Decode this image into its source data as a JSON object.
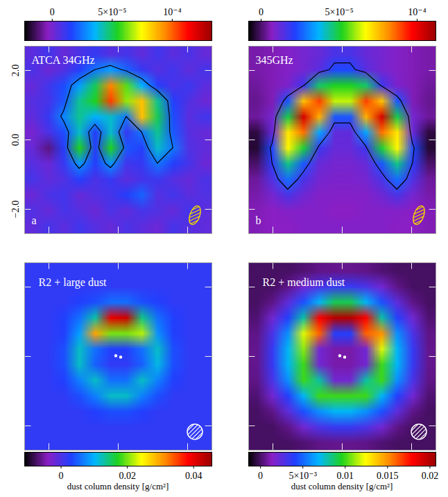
{
  "chart_data": [
    {
      "type": "heatmap",
      "title": "ATCA 34GHz",
      "panel_label": "a",
      "x": [
        -2.475,
        -2.025,
        -1.575,
        -1.125,
        -0.675,
        -0.225,
        0.225,
        0.675,
        1.125,
        1.575,
        2.025,
        2.475
      ],
      "y": [
        2.475,
        2.025,
        1.575,
        1.125,
        0.675,
        0.225,
        -0.225,
        -0.675,
        -1.125,
        -1.575,
        -2.025,
        -2.475
      ],
      "values": [
        [
          5e-06,
          1e-05,
          3e-06,
          8e-06,
          1.2e-05,
          6e-06,
          9e-06,
          4e-06,
          1e-05,
          5e-06,
          8e-06,
          3e-06
        ],
        [
          8e-06,
          2e-06,
          7e-06,
          1.5e-05,
          2.5e-05,
          3.2e-05,
          2.2e-05,
          1.2e-05,
          6e-06,
          1e-05,
          4e-06,
          9e-06
        ],
        [
          3e-06,
          1e-05,
          1.8e-05,
          3.2e-05,
          5e-05,
          9.5e-05,
          6e-05,
          3.5e-05,
          1.5e-05,
          8e-06,
          1.1e-05,
          5e-06
        ],
        [
          6e-06,
          9e-06,
          2e-05,
          4.5e-05,
          5.5e-05,
          0.000105,
          6.5e-05,
          8.5e-05,
          4.5e-05,
          1.5e-05,
          7e-06,
          2e-06
        ],
        [
          4e-06,
          1.2e-05,
          2.8e-05,
          4.5e-05,
          3.5e-05,
          4e-05,
          2.5e-05,
          8.5e-05,
          5e-05,
          1.8e-05,
          5e-06,
          1e-05
        ],
        [
          0,
          8e-06,
          1.8e-05,
          4e-05,
          1.5e-05,
          4e-05,
          1.2e-05,
          2.5e-05,
          4.5e-05,
          2e-05,
          6e-06,
          3e-06
        ],
        [
          3e-06,
          -1e-05,
          1.5e-05,
          5.5e-05,
          1.5e-05,
          5.5e-05,
          2e-05,
          1.5e-05,
          4e-05,
          2.5e-05,
          7e-06,
          4e-06
        ],
        [
          6e-06,
          2e-06,
          1.2e-05,
          3e-05,
          1.5e-05,
          3e-05,
          1e-05,
          1.2e-05,
          2.5e-05,
          1.5e-05,
          9e-06,
          2e-06
        ],
        [
          9e-06,
          4e-06,
          7e-06,
          1.5e-05,
          8e-06,
          1.2e-05,
          5e-06,
          9e-06,
          1.1e-05,
          6e-06,
          3e-06,
          8e-06
        ],
        [
          2e-06,
          8e-06,
          1e-05,
          3e-06,
          7e-06,
          9e-06,
          1.5e-05,
          2.2e-05,
          6e-06,
          1e-05,
          5e-06,
          7e-06
        ],
        [
          7e-06,
          3e-06,
          9e-06,
          6e-06,
          2e-06,
          8e-06,
          4e-06,
          9e-06,
          7e-06,
          3e-06,
          1e-05,
          5e-06
        ],
        [
          4e-06,
          9e-06,
          5e-06,
          1e-05,
          6e-06,
          3e-06,
          8e-06,
          5e-06,
          2e-06,
          9e-06,
          6e-06,
          4e-06
        ]
      ],
      "xlim": [
        -2.7,
        2.7
      ],
      "ylim": [
        -2.7,
        2.7
      ],
      "xticks": [
        -2,
        0,
        2
      ],
      "yticks": [
        -2,
        0,
        2
      ],
      "tick_labels": "y",
      "contour_levels": [
        2.5e-05
      ],
      "colorbar": {
        "range": [
          -2.3e-05,
          0.000133
        ],
        "ticks": [
          0,
          {
            "value": 5e-05,
            "label": "5×10⁻⁵"
          },
          {
            "value": 0.0001,
            "label": "10⁻⁴"
          }
        ]
      }
    },
    {
      "type": "heatmap",
      "title": "345GHz",
      "panel_label": "b",
      "x": [
        -2.475,
        -2.025,
        -1.575,
        -1.125,
        -0.675,
        -0.225,
        0.225,
        0.675,
        1.125,
        1.575,
        2.025,
        2.475
      ],
      "y": [
        2.475,
        2.025,
        1.575,
        1.125,
        0.675,
        0.225,
        -0.225,
        -0.675,
        -1.125,
        -1.575,
        -2.025,
        -2.475
      ],
      "values": [
        [
          5e-06,
          6e-06,
          8e-06,
          1e-05,
          1.2e-05,
          1.6e-05,
          1.6e-05,
          1.2e-05,
          1e-05,
          8e-06,
          6e-06,
          5e-06
        ],
        [
          5e-06,
          6e-06,
          8e-06,
          1e-05,
          1.4e-05,
          2.3e-05,
          2.3e-05,
          1.4e-05,
          1e-05,
          8e-06,
          6e-06,
          5e-06
        ],
        [
          4e-06,
          6e-06,
          9e-06,
          1.8e-05,
          4.7e-05,
          5.2e-05,
          5.2e-05,
          4.7e-05,
          1.8e-05,
          9e-06,
          6e-06,
          4e-06
        ],
        [
          3e-06,
          6e-06,
          2.5e-05,
          7.5e-05,
          9e-05,
          6.3e-05,
          6.3e-05,
          9e-05,
          7.5e-05,
          2.5e-05,
          6e-06,
          3e-06
        ],
        [
          4e-06,
          1e-05,
          4.9e-05,
          0.000103,
          7.7e-05,
          2.5e-05,
          2.5e-05,
          7.7e-05,
          0.000103,
          4.9e-05,
          1e-05,
          4e-06
        ],
        [
          -3e-06,
          1.2e-05,
          7e-05,
          8.5e-05,
          3.5e-05,
          1.3e-05,
          1.3e-05,
          3.5e-05,
          8.5e-05,
          7e-05,
          1.2e-05,
          -3e-06
        ],
        [
          -4e-06,
          2.3e-05,
          6.8e-05,
          5e-05,
          1.8e-05,
          1.2e-05,
          1.2e-05,
          1.8e-05,
          5e-05,
          6.8e-05,
          2.3e-05,
          -4e-06
        ],
        [
          0,
          2e-05,
          4.5e-05,
          2.5e-05,
          1.2e-05,
          1e-05,
          1e-05,
          1.2e-05,
          2.5e-05,
          4.5e-05,
          2e-05,
          0
        ],
        [
          4e-06,
          1.5e-05,
          2.8e-05,
          1.6e-05,
          1e-05,
          9e-06,
          9e-06,
          1e-05,
          1.6e-05,
          2.8e-05,
          1.5e-05,
          4e-06
        ],
        [
          5e-06,
          1e-05,
          1.6e-05,
          1.1e-05,
          8e-06,
          8e-06,
          8e-06,
          8e-06,
          1.1e-05,
          1.6e-05,
          1e-05,
          5e-06
        ],
        [
          6e-06,
          7e-06,
          8e-06,
          8e-06,
          8e-06,
          7e-06,
          7e-06,
          8e-06,
          8e-06,
          8e-06,
          7e-06,
          6e-06
        ],
        [
          6e-06,
          7e-06,
          7e-06,
          8e-06,
          8e-06,
          8e-06,
          8e-06,
          8e-06,
          8e-06,
          7e-06,
          7e-06,
          6e-06
        ]
      ],
      "xlim": [
        -2.7,
        2.7
      ],
      "ylim": [
        -2.7,
        2.7
      ],
      "xticks": [
        -2,
        0,
        2
      ],
      "yticks": [
        -2,
        0,
        2
      ],
      "tick_labels": false,
      "contour_levels": [
        2e-05
      ],
      "colorbar": {
        "range": [
          -8e-06,
          0.000112
        ],
        "ticks": [
          0,
          {
            "value": 5e-05,
            "label": "5×10⁻⁵"
          },
          {
            "value": 0.0001,
            "label": "10⁻⁴"
          }
        ]
      }
    },
    {
      "type": "heatmap",
      "title": "R2 + large dust",
      "x": [
        -2.475,
        -2.025,
        -1.575,
        -1.125,
        -0.675,
        -0.225,
        0.225,
        0.675,
        1.125,
        1.575,
        2.025,
        2.475
      ],
      "y": [
        2.475,
        2.025,
        1.575,
        1.125,
        0.675,
        0.225,
        -0.225,
        -0.675,
        -1.125,
        -1.575,
        -2.025,
        -2.475
      ],
      "values": [
        [
          0.002,
          0.002,
          0.002,
          0.002,
          0.002,
          0.002,
          0.002,
          0.002,
          0.002,
          0.002,
          0.002,
          0.002
        ],
        [
          0.002,
          0.002,
          0.002,
          0.002,
          0.002,
          0.002,
          0.002,
          0.002,
          0.002,
          0.002,
          0.002,
          0.002
        ],
        [
          0.002,
          0.002,
          0.002,
          0.003,
          0.004,
          0.006,
          0.006,
          0.004,
          0.003,
          0.002,
          0.002,
          0.002
        ],
        [
          0.002,
          0.002,
          0.003,
          0.006,
          0.013,
          0.04,
          0.042,
          0.014,
          0.006,
          0.003,
          0.002,
          0.002
        ],
        [
          0.002,
          0.002,
          0.003,
          0.009,
          0.03,
          0.02,
          0.02,
          0.022,
          0.008,
          0.003,
          0.002,
          0.002
        ],
        [
          0.002,
          0.002,
          0.004,
          0.012,
          0.006,
          0.003,
          0.003,
          0.006,
          0.012,
          0.004,
          0.002,
          0.002
        ],
        [
          0.002,
          0.002,
          0.004,
          0.012,
          0.005,
          0.002,
          0.002,
          0.005,
          0.011,
          0.004,
          0.002,
          0.002
        ],
        [
          0.002,
          0.002,
          0.003,
          0.007,
          0.012,
          0.006,
          0.006,
          0.012,
          0.007,
          0.003,
          0.002,
          0.002
        ],
        [
          0.002,
          0.002,
          0.002,
          0.004,
          0.007,
          0.012,
          0.012,
          0.007,
          0.004,
          0.002,
          0.002,
          0.002
        ],
        [
          0.002,
          0.002,
          0.002,
          0.002,
          0.003,
          0.004,
          0.004,
          0.003,
          0.002,
          0.002,
          0.002,
          0.002
        ],
        [
          0.002,
          0.002,
          0.002,
          0.002,
          0.002,
          0.002,
          0.002,
          0.002,
          0.002,
          0.002,
          0.002,
          0.002
        ],
        [
          0.002,
          0.002,
          0.002,
          0.002,
          0.002,
          0.002,
          0.002,
          0.002,
          0.002,
          0.002,
          0.002,
          0.002
        ]
      ],
      "xlim": [
        -2.7,
        2.7
      ],
      "ylim": [
        -2.7,
        2.7
      ],
      "xticks": [
        -2,
        0,
        2
      ],
      "yticks": [
        -2,
        0,
        2
      ],
      "tick_labels": false,
      "stars": {
        "x": [
          -0.07,
          0.07
        ],
        "y": [
          0.02,
          -0.02
        ]
      },
      "colorbar": {
        "range": [
          -0.011,
          0.0455
        ],
        "ticks": [
          0,
          0.02,
          0.04
        ],
        "label": "dust column density [g/cm²]"
      }
    },
    {
      "type": "heatmap",
      "title": "R2 + medium dust",
      "x": [
        -2.475,
        -2.025,
        -1.575,
        -1.125,
        -0.675,
        -0.225,
        0.225,
        0.675,
        1.125,
        1.575,
        2.025,
        2.475
      ],
      "y": [
        2.475,
        2.025,
        1.575,
        1.125,
        0.675,
        0.225,
        -0.225,
        -0.675,
        -1.125,
        -1.575,
        -2.025,
        -2.475
      ],
      "values": [
        [
          0,
          0,
          0,
          0.0002,
          0.0005,
          0.0006,
          0.0006,
          0.0005,
          0.0002,
          0,
          0,
          0
        ],
        [
          0,
          0,
          0.0005,
          0.002,
          0.003,
          0.0035,
          0.0035,
          0.003,
          0.002,
          0.0005,
          0,
          0
        ],
        [
          0,
          0.0005,
          0.0025,
          0.0045,
          0.007,
          0.009,
          0.009,
          0.007,
          0.0045,
          0.0025,
          0.0005,
          0
        ],
        [
          0.0002,
          0.002,
          0.004,
          0.008,
          0.018,
          0.02,
          0.02,
          0.018,
          0.008,
          0.004,
          0.002,
          0.0002
        ],
        [
          0.0005,
          0.003,
          0.006,
          0.012,
          0.016,
          0.004,
          0.004,
          0.016,
          0.015,
          0.006,
          0.003,
          0.0005
        ],
        [
          0.0006,
          0.0035,
          0.007,
          0.011,
          0.002,
          0.001,
          0.001,
          0.002,
          0.012,
          0.007,
          0.0035,
          0.0006
        ],
        [
          0.0006,
          0.0035,
          0.007,
          0.01,
          0.002,
          0.001,
          0.001,
          0.002,
          0.01,
          0.007,
          0.0035,
          0.0006
        ],
        [
          0.0005,
          0.003,
          0.006,
          0.01,
          0.008,
          0.002,
          0.002,
          0.008,
          0.01,
          0.006,
          0.003,
          0.0005
        ],
        [
          0.0002,
          0.002,
          0.004,
          0.007,
          0.01,
          0.01,
          0.01,
          0.01,
          0.007,
          0.004,
          0.002,
          0.0002
        ],
        [
          0,
          0.0005,
          0.0025,
          0.0045,
          0.006,
          0.007,
          0.007,
          0.006,
          0.0045,
          0.0025,
          0.0005,
          0
        ],
        [
          0,
          0,
          0.0005,
          0.002,
          0.003,
          0.0035,
          0.0035,
          0.003,
          0.002,
          0.0005,
          0,
          0
        ],
        [
          0,
          0,
          0,
          0.0002,
          0.0005,
          0.0006,
          0.0006,
          0.0005,
          0.0002,
          0,
          0,
          0
        ]
      ],
      "xlim": [
        -2.7,
        2.7
      ],
      "ylim": [
        -2.7,
        2.7
      ],
      "xticks": [
        -2,
        0,
        2
      ],
      "yticks": [
        -2,
        0,
        2
      ],
      "tick_labels": false,
      "stars": {
        "x": [
          -0.07,
          0.07
        ],
        "y": [
          0.02,
          -0.02
        ]
      },
      "colorbar": {
        "range": [
          -0.0014,
          0.0207
        ],
        "ticks": [
          0,
          {
            "value": 0.005,
            "label": "5×10⁻³"
          },
          0.01,
          0.015,
          0.02
        ],
        "label": "dust column density [g/cm²]"
      }
    }
  ]
}
